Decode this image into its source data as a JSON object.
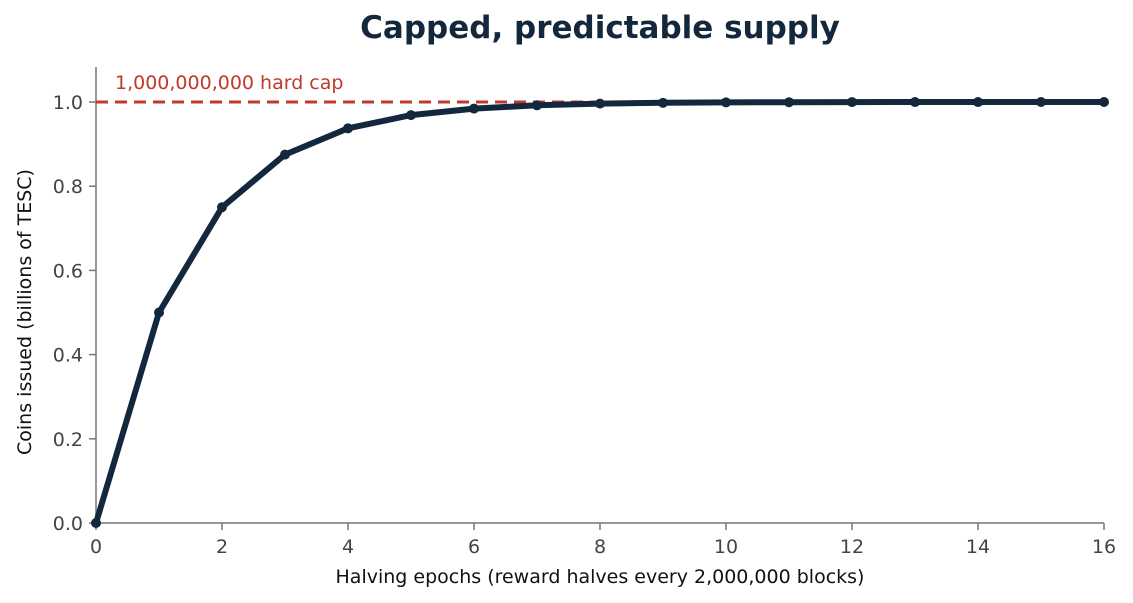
{
  "colors": {
    "line": "#13273d",
    "cap": "#c0392b",
    "axis": "#777777",
    "text": "#444444"
  },
  "chart_data": {
    "type": "line",
    "title": "Capped, predictable supply",
    "xlabel": "Halving epochs (reward halves every 2,000,000 blocks)",
    "ylabel": "Coins issued (billions of TESC)",
    "xlim": [
      0,
      16
    ],
    "ylim": [
      0,
      1.08
    ],
    "xticks": [
      0,
      2,
      4,
      6,
      8,
      10,
      12,
      14,
      16
    ],
    "yticks": [
      0.0,
      0.2,
      0.4,
      0.6,
      0.8,
      1.0
    ],
    "ytick_labels": [
      "0.0",
      "0.2",
      "0.4",
      "0.6",
      "0.8",
      "1.0"
    ],
    "x": [
      0,
      1,
      2,
      3,
      4,
      5,
      6,
      7,
      8,
      9,
      10,
      11,
      12,
      13,
      14,
      15,
      16
    ],
    "values": [
      0,
      0.5,
      0.75,
      0.875,
      0.9375,
      0.9688,
      0.9844,
      0.9922,
      0.9961,
      0.998,
      0.999,
      0.9995,
      0.9998,
      0.9999,
      0.9999,
      1.0,
      1.0
    ],
    "cap": {
      "value": 1.0,
      "label": "1,000,000,000 hard cap"
    },
    "grid": false
  }
}
